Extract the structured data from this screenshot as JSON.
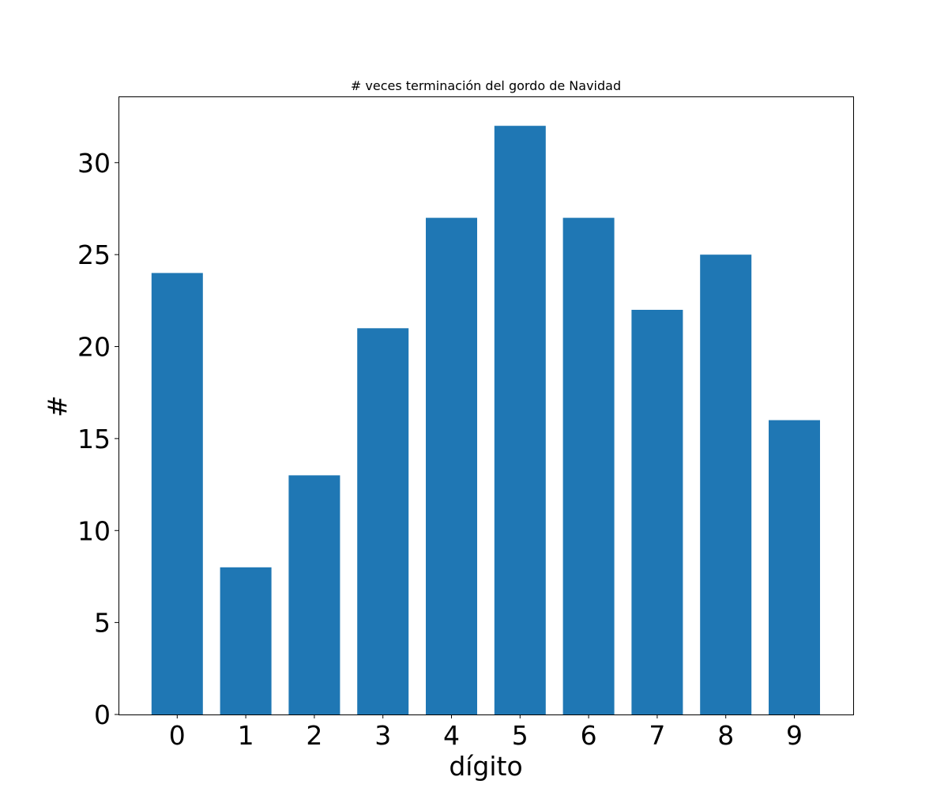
{
  "chart_data": {
    "type": "bar",
    "title": "# veces terminación del gordo de Navidad",
    "xlabel": "dígito",
    "ylabel": "#",
    "categories": [
      "0",
      "1",
      "2",
      "3",
      "4",
      "5",
      "6",
      "7",
      "8",
      "9"
    ],
    "values": [
      24,
      8,
      13,
      21,
      27,
      32,
      27,
      22,
      25,
      16
    ],
    "ylim": [
      0,
      33.6
    ],
    "yticks": [
      0,
      5,
      10,
      15,
      20,
      25,
      30
    ],
    "ytick_labels": [
      "0",
      "5",
      "10",
      "15",
      "20",
      "25",
      "30"
    ],
    "bar_color": "#1f77b4",
    "grid": false,
    "legend": "none"
  }
}
